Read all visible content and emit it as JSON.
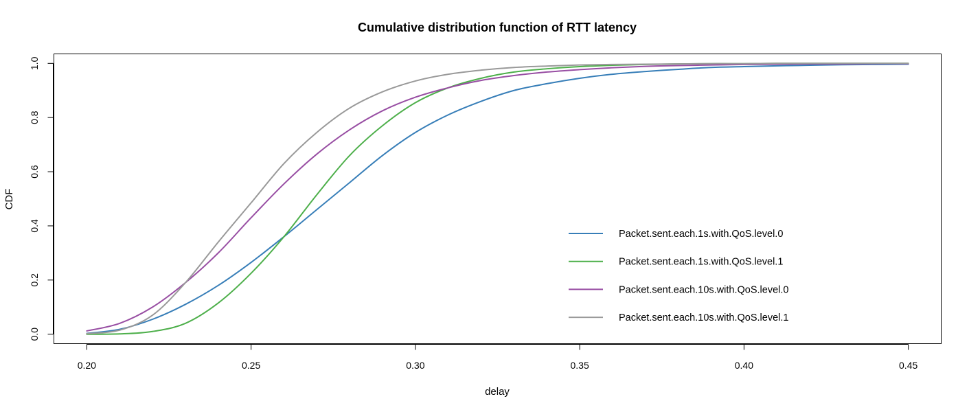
{
  "chart_data": {
    "type": "line",
    "title": "Cumulative distribution function of RTT latency",
    "xlabel": "delay",
    "ylabel": "CDF",
    "xlim": [
      0.19,
      0.46
    ],
    "ylim": [
      -0.035,
      1.035
    ],
    "x_ticks": [
      0.2,
      0.25,
      0.3,
      0.35,
      0.4,
      0.45
    ],
    "x_tick_labels": [
      "0.20",
      "0.25",
      "0.30",
      "0.35",
      "0.40",
      "0.45"
    ],
    "y_ticks": [
      0.0,
      0.2,
      0.4,
      0.6,
      0.8,
      1.0
    ],
    "y_tick_labels": [
      "0.0",
      "0.2",
      "0.4",
      "0.6",
      "0.8",
      "1.0"
    ],
    "grid": false,
    "legend_position": "bottom-right",
    "x": [
      0.2,
      0.21,
      0.22,
      0.23,
      0.24,
      0.25,
      0.26,
      0.27,
      0.28,
      0.29,
      0.3,
      0.31,
      0.32,
      0.33,
      0.34,
      0.35,
      0.36,
      0.37,
      0.38,
      0.39,
      0.4,
      0.41,
      0.42,
      0.43,
      0.44,
      0.45
    ],
    "series": [
      {
        "name": "Packet.sent.each.1s.with.QoS.level.0",
        "color": "#377eb8",
        "values": [
          0.003,
          0.018,
          0.055,
          0.11,
          0.18,
          0.265,
          0.36,
          0.46,
          0.56,
          0.66,
          0.745,
          0.81,
          0.86,
          0.9,
          0.925,
          0.945,
          0.96,
          0.97,
          0.978,
          0.985,
          0.988,
          0.991,
          0.993,
          0.995,
          0.996,
          0.997
        ]
      },
      {
        "name": "Packet.sent.each.1s.with.QoS.level.1",
        "color": "#4daf4a",
        "values": [
          0.0,
          0.001,
          0.01,
          0.04,
          0.115,
          0.225,
          0.36,
          0.515,
          0.66,
          0.77,
          0.855,
          0.91,
          0.945,
          0.968,
          0.98,
          0.988,
          0.993,
          0.996,
          0.998,
          0.999,
          0.999,
          1.0,
          1.0,
          1.0,
          1.0,
          1.0
        ]
      },
      {
        "name": "Packet.sent.each.10s.with.QoS.level.0",
        "color": "#984ea3",
        "values": [
          0.012,
          0.04,
          0.1,
          0.19,
          0.3,
          0.43,
          0.555,
          0.665,
          0.755,
          0.825,
          0.875,
          0.91,
          0.937,
          0.955,
          0.968,
          0.977,
          0.984,
          0.989,
          0.992,
          0.994,
          0.996,
          0.997,
          0.998,
          0.998,
          0.999,
          0.999
        ]
      },
      {
        "name": "Packet.sent.each.10s.with.QoS.level.1",
        "color": "#999999",
        "values": [
          0.002,
          0.015,
          0.07,
          0.19,
          0.34,
          0.485,
          0.63,
          0.745,
          0.835,
          0.895,
          0.935,
          0.96,
          0.975,
          0.985,
          0.99,
          0.994,
          0.996,
          0.997,
          0.998,
          0.999,
          0.999,
          1.0,
          1.0,
          1.0,
          1.0,
          1.0
        ]
      }
    ]
  }
}
